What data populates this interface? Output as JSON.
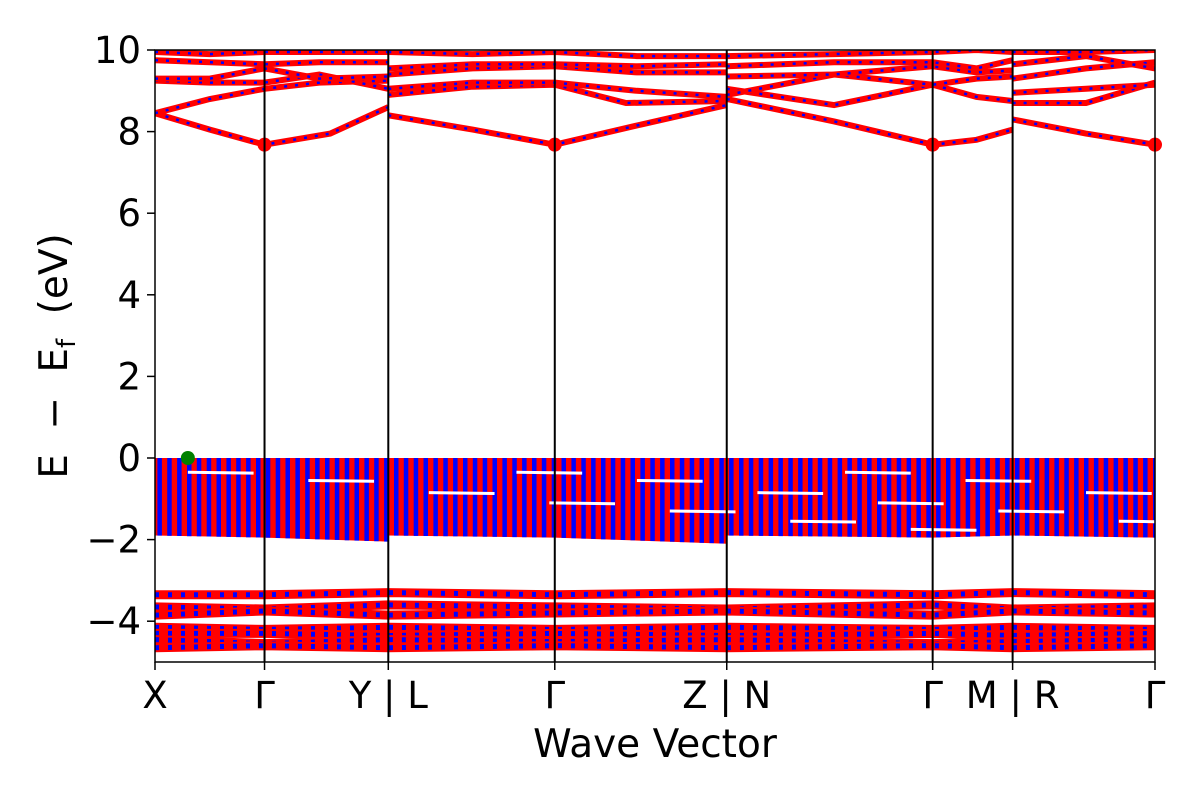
{
  "chart_data": {
    "type": "line",
    "xlabel": "Wave Vector",
    "ylabel_parts": [
      "E",
      "−",
      "E",
      "f",
      "(eV)"
    ],
    "ylim": [
      -5,
      10
    ],
    "yticks": [
      -4,
      -2,
      0,
      2,
      4,
      6,
      8,
      10
    ],
    "ytick_labels": [
      "−4",
      "−2",
      "0",
      "2",
      "4",
      "6",
      "8",
      "10"
    ],
    "grid": false,
    "legend": "none",
    "colors": {
      "spin_up": "#ff0000",
      "spin_down": "#0000ff",
      "cbm_marker": "#ff0000",
      "vbm_marker": "#008000",
      "boundary": "#000000"
    },
    "kpath": {
      "breaks": [
        0,
        1,
        2.13,
        3.65,
        5.22,
        7.1,
        7.83,
        9.13
      ],
      "labels": [
        "X",
        "Γ",
        "Y | L",
        "Γ",
        "Z | N",
        "Γ",
        "M | R",
        "Γ"
      ],
      "discontinuities": [
        2.13,
        5.22,
        7.83
      ]
    },
    "markers": {
      "cbm": [
        {
          "x": 1,
          "y": 7.68
        },
        {
          "x": 3.65,
          "y": 7.68
        },
        {
          "x": 7.1,
          "y": 7.68
        },
        {
          "x": 9.13,
          "y": 7.68
        }
      ],
      "vbm": [
        {
          "x": 0.3,
          "y": 0.0
        }
      ]
    },
    "conduction_bands": [
      {
        "name": "c1",
        "points": [
          [
            0,
            8.45
          ],
          [
            0.5,
            8.05
          ],
          [
            1,
            7.68
          ],
          [
            1.6,
            7.95
          ],
          [
            2.13,
            8.6
          ],
          [
            2.13,
            8.4
          ],
          [
            2.9,
            8.05
          ],
          [
            3.65,
            7.68
          ],
          [
            4.4,
            8.15
          ],
          [
            5.22,
            8.65
          ],
          [
            5.22,
            8.8
          ],
          [
            6.2,
            8.25
          ],
          [
            7.1,
            7.68
          ],
          [
            7.5,
            7.8
          ],
          [
            7.83,
            8.05
          ],
          [
            7.83,
            8.3
          ],
          [
            8.5,
            7.95
          ],
          [
            9.13,
            7.68
          ]
        ]
      },
      {
        "name": "c2",
        "points": [
          [
            0,
            8.45
          ],
          [
            0.5,
            8.8
          ],
          [
            1,
            9.05
          ],
          [
            1.5,
            9.2
          ],
          [
            2.13,
            9.25
          ],
          [
            2.13,
            8.9
          ],
          [
            2.9,
            9.1
          ],
          [
            3.65,
            9.15
          ],
          [
            4.3,
            8.7
          ],
          [
            5.22,
            8.75
          ],
          [
            5.22,
            9.05
          ],
          [
            6.2,
            8.65
          ],
          [
            7.1,
            9.15
          ],
          [
            7.5,
            8.85
          ],
          [
            7.83,
            8.75
          ],
          [
            7.83,
            8.7
          ],
          [
            8.5,
            8.7
          ],
          [
            9.13,
            9.2
          ]
        ]
      },
      {
        "name": "c3",
        "points": [
          [
            0,
            9.25
          ],
          [
            0.5,
            9.2
          ],
          [
            1,
            9.2
          ],
          [
            1.5,
            9.4
          ],
          [
            2.13,
            9.05
          ],
          [
            2.13,
            9.05
          ],
          [
            2.9,
            9.2
          ],
          [
            3.65,
            9.2
          ],
          [
            4.4,
            9.0
          ],
          [
            5.22,
            8.85
          ],
          [
            5.22,
            8.9
          ],
          [
            6.2,
            9.4
          ],
          [
            7.1,
            9.15
          ],
          [
            7.5,
            9.3
          ],
          [
            7.83,
            9.35
          ],
          [
            7.83,
            8.95
          ],
          [
            8.5,
            9.05
          ],
          [
            9.13,
            9.15
          ]
        ]
      },
      {
        "name": "c4",
        "points": [
          [
            0,
            9.3
          ],
          [
            0.5,
            9.3
          ],
          [
            1,
            9.55
          ],
          [
            1.5,
            9.3
          ],
          [
            2.13,
            9.35
          ],
          [
            2.13,
            9.4
          ],
          [
            2.9,
            9.55
          ],
          [
            3.65,
            9.6
          ],
          [
            4.4,
            9.45
          ],
          [
            5.22,
            9.45
          ],
          [
            5.22,
            9.35
          ],
          [
            6.2,
            9.4
          ],
          [
            7.1,
            9.6
          ],
          [
            7.5,
            9.45
          ],
          [
            7.83,
            9.5
          ],
          [
            7.83,
            9.3
          ],
          [
            8.5,
            9.55
          ],
          [
            9.13,
            9.7
          ]
        ]
      },
      {
        "name": "c5",
        "points": [
          [
            0,
            9.75
          ],
          [
            0.5,
            9.7
          ],
          [
            1,
            9.65
          ],
          [
            1.5,
            9.7
          ],
          [
            2.13,
            9.7
          ],
          [
            2.13,
            9.55
          ],
          [
            2.9,
            9.65
          ],
          [
            3.65,
            9.65
          ],
          [
            4.4,
            9.6
          ],
          [
            5.22,
            9.65
          ],
          [
            5.22,
            9.6
          ],
          [
            6.2,
            9.7
          ],
          [
            7.1,
            9.7
          ],
          [
            7.5,
            9.55
          ],
          [
            7.83,
            9.75
          ],
          [
            7.83,
            9.65
          ],
          [
            8.5,
            9.85
          ],
          [
            9.13,
            9.55
          ]
        ]
      },
      {
        "name": "c6",
        "points": [
          [
            0,
            9.95
          ],
          [
            0.5,
            9.9
          ],
          [
            1,
            9.95
          ],
          [
            1.5,
            9.95
          ],
          [
            2.13,
            9.95
          ],
          [
            2.13,
            9.95
          ],
          [
            2.9,
            9.9
          ],
          [
            3.65,
            9.95
          ],
          [
            4.4,
            9.85
          ],
          [
            5.22,
            9.85
          ],
          [
            5.22,
            9.85
          ],
          [
            6.2,
            9.9
          ],
          [
            7.1,
            9.95
          ],
          [
            7.5,
            10.0
          ],
          [
            7.83,
            9.95
          ],
          [
            7.83,
            9.95
          ],
          [
            8.5,
            9.95
          ],
          [
            9.13,
            10.0
          ]
        ]
      }
    ],
    "valence_block_upper": {
      "top": 0.0,
      "bottom": [
        [
          0,
          -1.9
        ],
        [
          1,
          -1.95
        ],
        [
          2.13,
          -2.05
        ],
        [
          2.13,
          -1.9
        ],
        [
          3.65,
          -1.95
        ],
        [
          5.22,
          -2.1
        ],
        [
          5.22,
          -1.9
        ],
        [
          7.1,
          -1.95
        ],
        [
          7.83,
          -1.9
        ],
        [
          9.13,
          -1.95
        ]
      ]
    },
    "valence_block_upper_gaps": [
      -0.35,
      -0.55,
      -0.85,
      -1.1,
      -1.3,
      -1.55,
      -1.75
    ],
    "valence_block_lower": {
      "top": -3.3,
      "bottom": -4.65
    },
    "valence_lower_bands": [
      {
        "name": "v1",
        "points": [
          [
            0,
            -3.35
          ],
          [
            1,
            -3.35
          ],
          [
            2.13,
            -3.3
          ],
          [
            3.65,
            -3.35
          ],
          [
            5.22,
            -3.3
          ],
          [
            7.1,
            -3.35
          ],
          [
            7.83,
            -3.3
          ],
          [
            9.13,
            -3.35
          ]
        ]
      },
      {
        "name": "v2",
        "points": [
          [
            0,
            -3.65
          ],
          [
            1,
            -3.7
          ],
          [
            2.13,
            -3.6
          ],
          [
            3.65,
            -3.65
          ],
          [
            5.22,
            -3.7
          ],
          [
            7.1,
            -3.6
          ],
          [
            7.83,
            -3.7
          ],
          [
            9.13,
            -3.65
          ]
        ]
      },
      {
        "name": "v3",
        "points": [
          [
            0,
            -3.85
          ],
          [
            1,
            -3.75
          ],
          [
            2.13,
            -3.85
          ],
          [
            3.65,
            -3.8
          ],
          [
            5.22,
            -3.75
          ],
          [
            7.1,
            -3.85
          ],
          [
            7.83,
            -3.75
          ],
          [
            9.13,
            -3.8
          ]
        ]
      },
      {
        "name": "v4",
        "points": [
          [
            0,
            -4.15
          ],
          [
            1,
            -4.2
          ],
          [
            2.13,
            -4.15
          ],
          [
            3.65,
            -4.2
          ],
          [
            5.22,
            -4.15
          ],
          [
            7.1,
            -4.2
          ],
          [
            7.83,
            -4.15
          ],
          [
            9.13,
            -4.2
          ]
        ]
      },
      {
        "name": "v5",
        "points": [
          [
            0,
            -4.3
          ],
          [
            1,
            -4.3
          ],
          [
            2.13,
            -4.35
          ],
          [
            3.65,
            -4.3
          ],
          [
            5.22,
            -4.35
          ],
          [
            7.1,
            -4.3
          ],
          [
            7.83,
            -4.35
          ],
          [
            9.13,
            -4.3
          ]
        ]
      },
      {
        "name": "v6",
        "points": [
          [
            0,
            -4.45
          ],
          [
            1,
            -4.55
          ],
          [
            2.13,
            -4.45
          ],
          [
            3.65,
            -4.5
          ],
          [
            5.22,
            -4.45
          ],
          [
            7.1,
            -4.55
          ],
          [
            7.83,
            -4.5
          ],
          [
            9.13,
            -4.45
          ]
        ]
      },
      {
        "name": "v7",
        "points": [
          [
            0,
            -4.65
          ],
          [
            1,
            -4.6
          ],
          [
            2.13,
            -4.65
          ],
          [
            3.65,
            -4.6
          ],
          [
            5.22,
            -4.65
          ],
          [
            7.1,
            -4.6
          ],
          [
            7.83,
            -4.65
          ],
          [
            9.13,
            -4.6
          ]
        ]
      }
    ]
  }
}
